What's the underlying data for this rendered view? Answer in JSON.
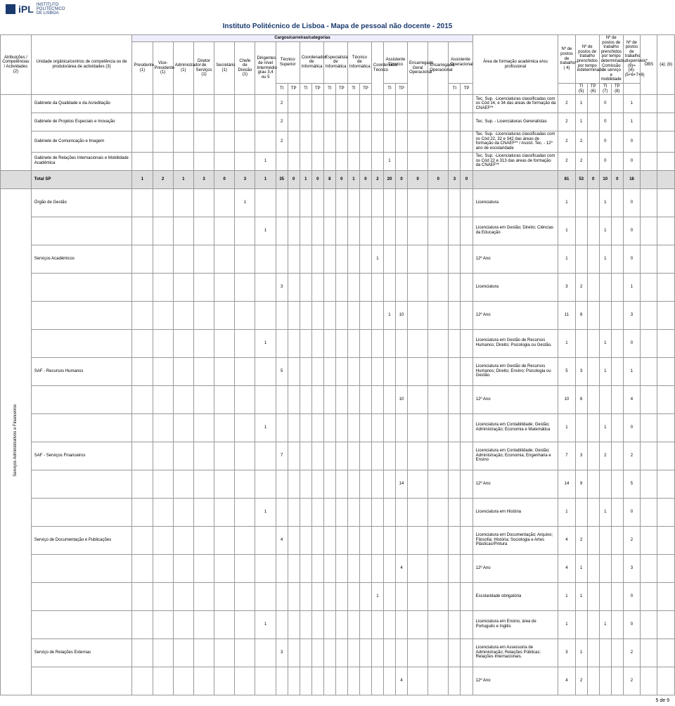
{
  "header": {
    "logo_text": "iPL",
    "logo_sub1": "INSTITUTO",
    "logo_sub2": "POLITÉCNICO",
    "logo_sub3": "DE LISBOA"
  },
  "title": "Instituto Politécnico de Lisboa - Mapa de pessoal não docente - 2015",
  "group_header": "Cargos/carreiras/categorias",
  "cols": {
    "attr": "Atribuições / Competências / Actividades (2)",
    "unit": "Unidade orgânica/centros de competência ou de produto/área de actividades (3)",
    "pres": "Presidente (1)",
    "vpres": "Vice-Presidente (1)",
    "admin": "Administrador (1)",
    "diretor": "Diretor de Serviços (1)",
    "secret": "Secretário (1)",
    "chefe": "Chefe de Divisão (1)",
    "dirig": "Dirigentes de nível Intermédio grau 3,4 ou 5",
    "tecsup": "Técnico Superior",
    "coordinf": "Coordenador de Informática",
    "espinf": "Especialista de Informática",
    "tecinf": "Técnico de Informática",
    "coordtec": "Coordenador Técnico",
    "asstec": "Assistente Técnico",
    "encger": "Encarregado Geral Operacional",
    "encop": "Encarregado Operacional",
    "assop": "Assistente Operacional",
    "area": "Área de formação académica e/ou profissional",
    "n4": "Nº de postos de trabalho* ( 4)",
    "n_tindet": "Nº de postos de trabalho prenchidos por tempo indeterminado",
    "n_tdet": "Nº de postos de trabalho prenchidos por tempo determinado, Comissão de serviço e mobilidade",
    "n_disp": "Nº de postos de trabalho disponíveis* (9)=(4)-(5+6+7+8)",
    "obs": "OBS",
    "ab": "(a); (b)",
    "TI": "TI",
    "TP": "TP",
    "s5": "(5)",
    "s6": "(6)",
    "s7": "(7)",
    "s8": "(8)"
  },
  "rows": [
    {
      "unit": "Gabinete da Qualidade e da Acreditação",
      "vals": {
        "tecsup_ti": "2"
      },
      "area": "Tec. Sup. -Licenciaturas classificadas com os Cód 14, e 34 das áreas de formação da CNAEF**",
      "c4": "2",
      "c5": "1",
      "c7": "0",
      "c9": "1"
    },
    {
      "unit": "Gabinete de Projetos Especiais e Inovação",
      "vals": {
        "tecsup_ti": "2"
      },
      "area": "Tec. Sup. - Licenciaturas Generalistas",
      "c4": "2",
      "c5": "1",
      "c7": "0",
      "c9": "1"
    },
    {
      "unit": "Gabinete de Comunicação e Imagem",
      "vals": {
        "tecsup_ti": "2"
      },
      "area": "Tec. Sup. -Licenciaturas classificadas com  os Cód 22, 32 e 342 das áreas de formação da CNAEF**   / Assist. Tec. - 12º ano de escolaridade",
      "c4": "2",
      "c5": "2",
      "c7": "0",
      "c9": "0"
    },
    {
      "unit": "Gabinete de Relações Internacionais e Mobilidade Académica",
      "vals": {
        "dirig": "1",
        "asstec_ti": "1"
      },
      "area": "Tec. Sup. -Licenciaturas classificadas com  os Cód 22 e 313 das áreas de formação da CNAEF**",
      "c4": "2",
      "c5": "2",
      "c7": "0",
      "c9": "0"
    }
  ],
  "total": {
    "label": "Total SP",
    "pres": "1",
    "vpres": "2",
    "admin": "1",
    "diretor": "3",
    "secret": "0",
    "chefe": "3",
    "dirig": "1",
    "tecsup_ti": "35",
    "tecsup_tp": "0",
    "coordinf_ti": "1",
    "coordinf_tp": "0",
    "espinf_ti": "8",
    "espinf_tp": "0",
    "tecinf_ti": "1",
    "tecinf_tp": "0",
    "coordtec": "2",
    "asstec_ti": "20",
    "asstec_tp": "0",
    "encger": "0",
    "encop": "0",
    "assop_ti": "3",
    "assop_tp": "0",
    "c4": "81",
    "c5": "53",
    "c6": "0",
    "c7": "10",
    "c8": "0",
    "c9": "18"
  },
  "body": [
    {
      "unit": "Órgão de Gestão",
      "chefe": "1",
      "area": "Licenciatura",
      "c4": "1",
      "c7": "1",
      "c9": "0"
    },
    {
      "dirig": "1",
      "area": "Licenciatura em Gestão; Direito; Ciências da Educação",
      "c4": "1",
      "c7": "1",
      "c9": "0"
    },
    {
      "unit": "Serviços Académicos",
      "coordtec_ti": "1",
      "area": "12º Ano",
      "c4": "1",
      "c7": "1",
      "c9": "0"
    },
    {
      "tecsup_ti": "3",
      "area": "Licenciatura",
      "c4": "3",
      "c5": "2",
      "c9": "1"
    },
    {
      "asstec_ti": "1",
      "asstec_tp": "10",
      "area": "12º Ano",
      "c4": "11",
      "c5": "8",
      "c9": "3"
    },
    {
      "dirig": "1",
      "area": "Licenciatura em Gestão de Recursos Humanos; Direito; Psicologia ou Gestão.",
      "c4": "1",
      "c7": "1",
      "c9": "0"
    },
    {
      "unit": "SAF - Recursos Humanos",
      "tecsup_ti": "5",
      "area": "Licenciatura em Gestão de Recursos Humanos; Direito; Ensino; Psicologia ou Gestão.",
      "c4": "5",
      "c5": "3",
      "c9": "1",
      "c7": "1"
    },
    {
      "asstec_tp": "10",
      "area": "12º Ano",
      "c4": "10",
      "c5": "6",
      "c9": "4"
    },
    {
      "dirig": "1",
      "area": "Licenciatura em Contabilidade; Gestão; Administração; Economia e Matemática",
      "c4": "1",
      "c7": "1",
      "c9": "0"
    },
    {
      "unit": "SAF - Serviços Financeiros",
      "tecsup_ti": "7",
      "area": "Licenciatura em Contabilidade; Gestão; Administração; Economia; Engenharia e Ensino",
      "c4": "7",
      "c5": "3",
      "c9": "2",
      "c7": "2"
    },
    {
      "asstec_tp": "14",
      "area": "12º Ano",
      "c4": "14",
      "c5": "9",
      "c9": "5"
    },
    {
      "dirig": "1",
      "area": "Licenciatura em História",
      "c4": "1",
      "c7": "1",
      "c9": "0"
    },
    {
      "unit": "Serviço de Documentação e Publicações",
      "tecsup_ti": "4",
      "area": "Licenciatura em Documentação; Arquivo; Filosofia; História; Sociologia e Artes Plásticas/Pintura",
      "c4": "4",
      "c5": "2",
      "c9": "2"
    },
    {
      "asstec_tp": "4",
      "area": "12º Ano",
      "c4": "4",
      "c5": "1",
      "c9": "3"
    },
    {
      "coordtec_ti": "1",
      "area": "Escolaridade obrigatória",
      "c4": "1",
      "c5": "1",
      "c9": "0"
    },
    {
      "dirig": "1",
      "area": "Licenciatura em Ensino, área de Português e Inglês",
      "c4": "1",
      "c7": "1",
      "c9": "0"
    },
    {
      "unit": "Serviço de Relações Externas",
      "tecsup_ti": "3",
      "area": "Licenciatura em Assessoria de Administração; Relações Públicas; Relações Internacionais.",
      "c4": "3",
      "c5": "1",
      "c9": "2"
    },
    {
      "asstec_tp": "4",
      "area": "12º Ano",
      "c4": "4",
      "c5": "2",
      "c9": "2"
    }
  ],
  "side_label": "Serviços Administrativos e Financeiros",
  "footer": "5 de 9"
}
